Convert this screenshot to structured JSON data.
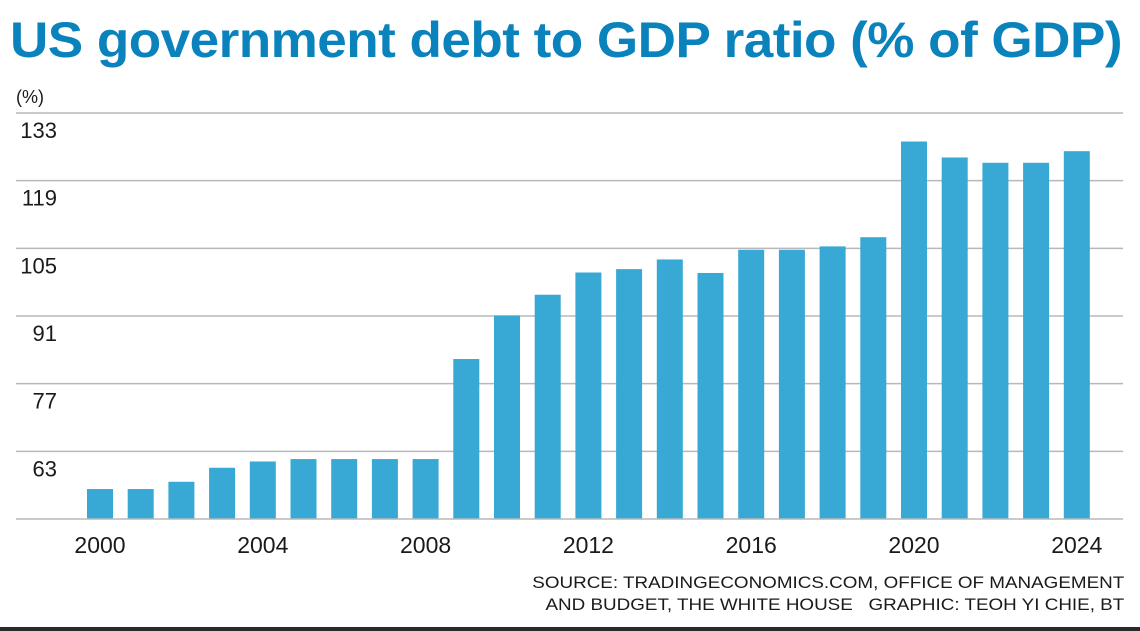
{
  "chart_data": {
    "type": "bar",
    "title": "US government debt to GDP ratio (% of GDP)",
    "ylabel": "(%)",
    "xlabel": "",
    "ylim": [
      49,
      133
    ],
    "yticks": [
      63,
      77,
      91,
      105,
      119,
      133
    ],
    "grid": true,
    "legend": "none",
    "bar_color": "#38a8d4",
    "title_color": "#0a82bc",
    "categories": [
      "2000",
      "2001",
      "2002",
      "2003",
      "2004",
      "2005",
      "2006",
      "2007",
      "2008",
      "2009",
      "2010",
      "2011",
      "2012",
      "2013",
      "2014",
      "2015",
      "2016",
      "2017",
      "2018",
      "2019",
      "2020",
      "2021",
      "2022",
      "2023",
      "2024"
    ],
    "xtick_labels": [
      "2000",
      "2004",
      "2008",
      "2012",
      "2016",
      "2020",
      "2024"
    ],
    "values": [
      55.2,
      55.2,
      56.7,
      59.6,
      60.9,
      61.4,
      61.4,
      61.4,
      61.4,
      82.1,
      91.1,
      95.4,
      100.0,
      100.7,
      102.7,
      99.9,
      104.7,
      104.7,
      105.4,
      107.3,
      127.1,
      123.8,
      122.7,
      122.7,
      125.1
    ]
  },
  "footer": {
    "line1": "SOURCE: TRADINGECONOMICS.COM, OFFICE OF MANAGEMENT",
    "line2": "AND BUDGET, THE WHITE HOUSE   GRAPHIC: TEOH YI CHIE, BT"
  }
}
